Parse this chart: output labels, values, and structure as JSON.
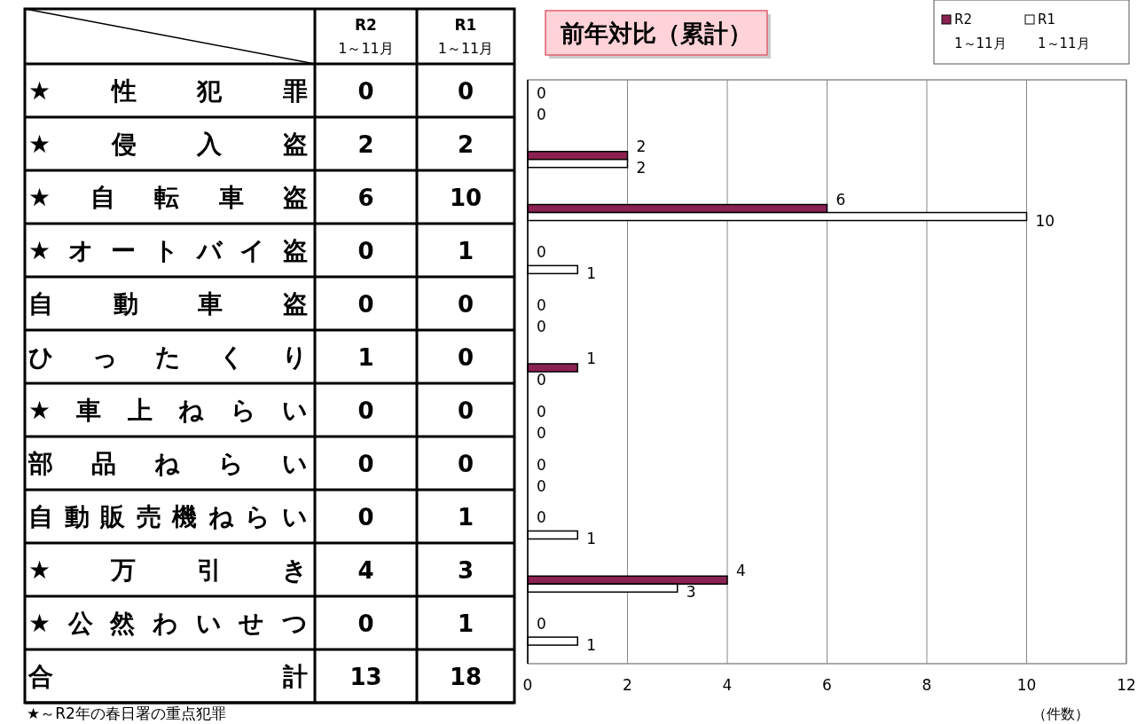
{
  "chart_data": [
    {
      "type": "other",
      "categories": [
        "★性犯罪",
        "★侵入盗",
        "★自転車盗",
        "★オートバイ盗",
        "自動車盗",
        "ひったくり",
        "★車上ねらい",
        "部品ねらい",
        "自動販売機ねらい",
        "★万引き",
        "★公然わいせつ",
        "合計"
      ],
      "series": [
        {
          "name": "R2 1～11月",
          "values": [
            0,
            2,
            6,
            0,
            0,
            1,
            0,
            0,
            0,
            4,
            0,
            13
          ]
        },
        {
          "name": "R1 1～11月",
          "values": [
            0,
            2,
            10,
            1,
            0,
            0,
            0,
            0,
            1,
            3,
            1,
            18
          ]
        }
      ],
      "data_labels": true,
      "annotations": [
        "★～R2年の春日署の重点犯罪"
      ]
    },
    {
      "type": "bar",
      "orientation": "horizontal",
      "title": "前年対比（累計）",
      "xlabel": "（件数）",
      "categories": [
        null,
        null,
        null,
        null,
        null,
        null,
        null,
        null,
        null,
        null,
        null
      ],
      "series": [
        {
          "name": "R2 1～11月",
          "color": "#8b2252",
          "values": [
            0,
            2,
            6,
            0,
            0,
            1,
            0,
            0,
            0,
            4,
            0
          ],
          "value_labels": [
            "0",
            "2",
            "6",
            "0",
            "0",
            "1",
            "0",
            "0",
            "0",
            "4",
            "0"
          ]
        },
        {
          "name": "R1 1～11月",
          "color": "#ffffff",
          "values": [
            0,
            2,
            10,
            1,
            0,
            0,
            0,
            0,
            1,
            3,
            1
          ],
          "value_labels": [
            "0",
            "2",
            "10",
            "1",
            "0",
            "0",
            "0",
            "0",
            "1",
            "3",
            "1"
          ]
        }
      ],
      "xlim": [
        0,
        12
      ],
      "xticks": [
        0,
        2,
        4,
        6,
        8,
        10,
        12
      ],
      "grid": "x",
      "legend": "top right"
    }
  ]
}
